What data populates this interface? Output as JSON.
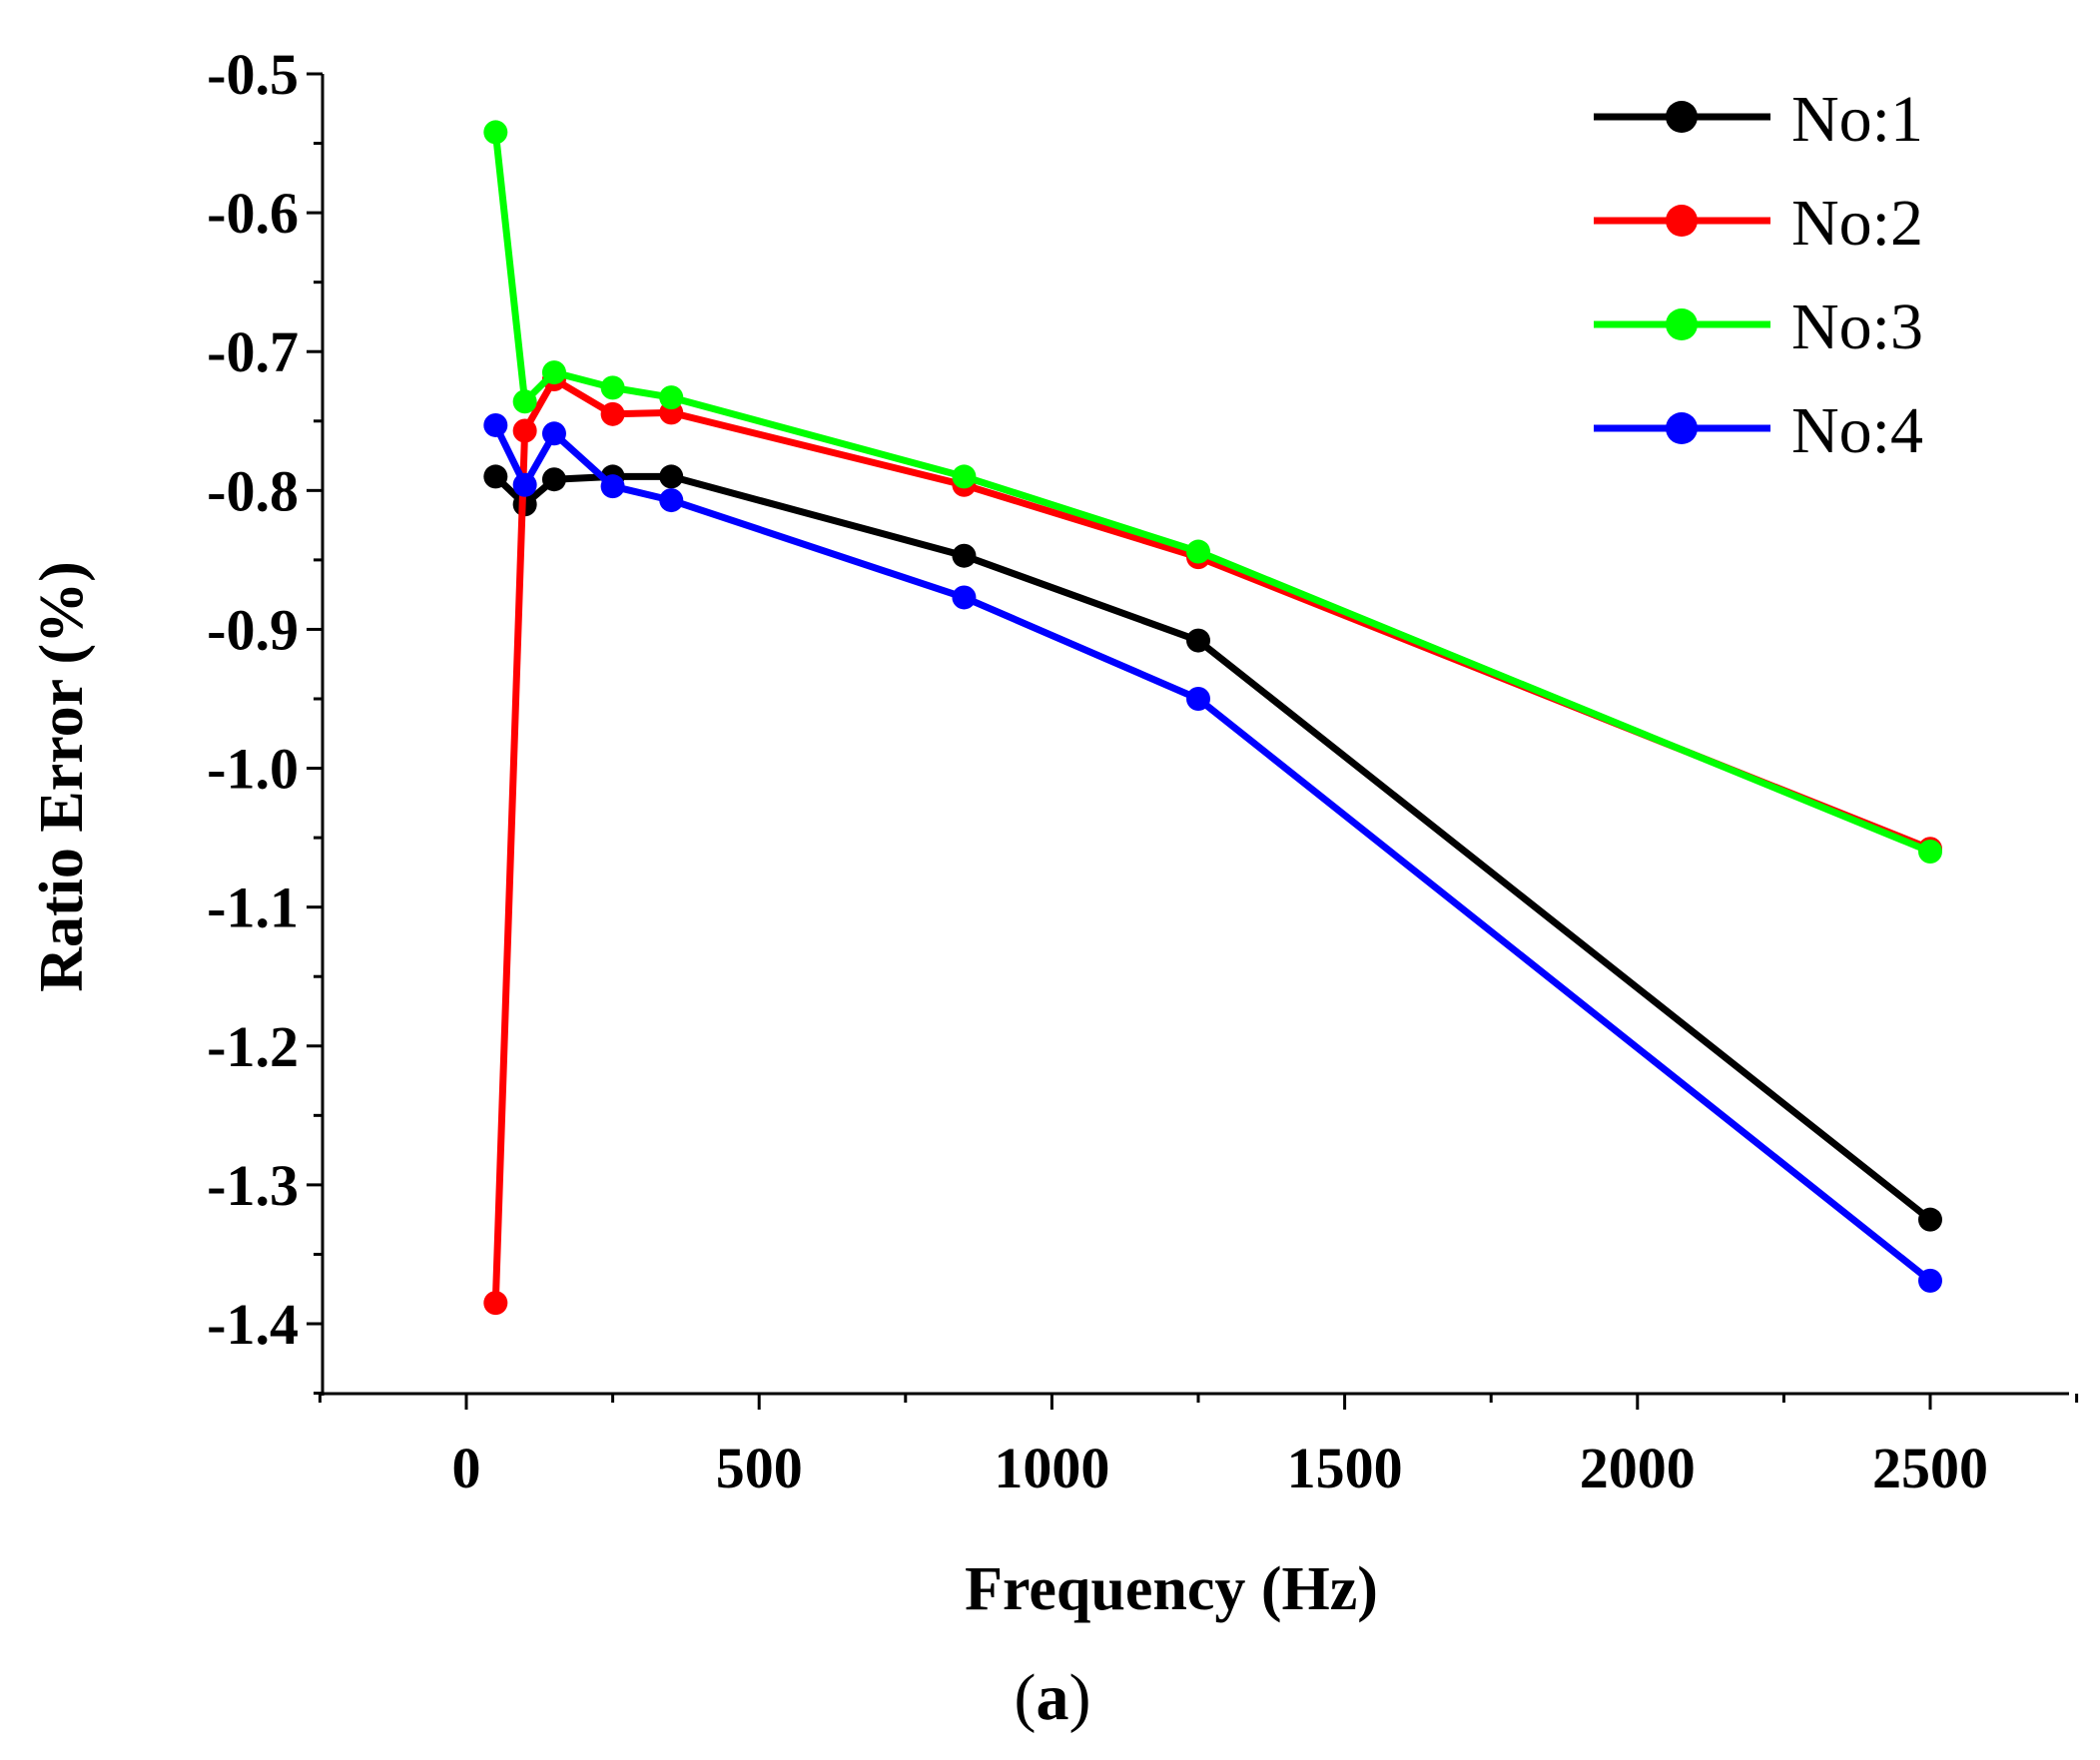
{
  "chart_data": {
    "type": "line",
    "title": "",
    "xlabel": "Frequency (Hz)",
    "ylabel": "Ratio Error (%)",
    "caption": {
      "open": "(",
      "letter": "a",
      "close": ")"
    },
    "xlim": [
      -250,
      2750
    ],
    "ylim": [
      -1.45,
      -0.5
    ],
    "xticks": [
      0,
      500,
      1000,
      1500,
      2000,
      2500
    ],
    "xtick_labels": [
      "0",
      "500",
      "1000",
      "1500",
      "2000",
      "2500"
    ],
    "yticks": [
      -0.5,
      -0.6,
      -0.7,
      -0.8,
      -0.9,
      -1.0,
      -1.1,
      -1.2,
      -1.3,
      -1.4
    ],
    "ytick_labels": [
      "-0.5",
      "-0.6",
      "-0.7",
      "-0.8",
      "-0.9",
      "-1.0",
      "-1.1",
      "-1.2",
      "-1.3",
      "-1.4"
    ],
    "legend_position": "top-right",
    "x": [
      50,
      100,
      150,
      250,
      350,
      850,
      1250,
      2500
    ],
    "series": [
      {
        "name": "No:1",
        "color": "#000000",
        "values": [
          -0.79,
          -0.81,
          -0.792,
          -0.79,
          -0.79,
          -0.847,
          -0.908,
          -1.325
        ]
      },
      {
        "name": "No:2",
        "color": "#ff0000",
        "values": [
          -1.385,
          -0.757,
          -0.72,
          -0.745,
          -0.744,
          -0.796,
          -0.848,
          -1.058
        ]
      },
      {
        "name": "No:3",
        "color": "#00ff00",
        "values": [
          -0.542,
          -0.736,
          -0.715,
          -0.726,
          -0.733,
          -0.79,
          -0.844,
          -1.06
        ]
      },
      {
        "name": "No:4",
        "color": "#0000ff",
        "values": [
          -0.753,
          -0.796,
          -0.759,
          -0.797,
          -0.807,
          -0.877,
          -0.95,
          -1.369
        ]
      }
    ]
  }
}
